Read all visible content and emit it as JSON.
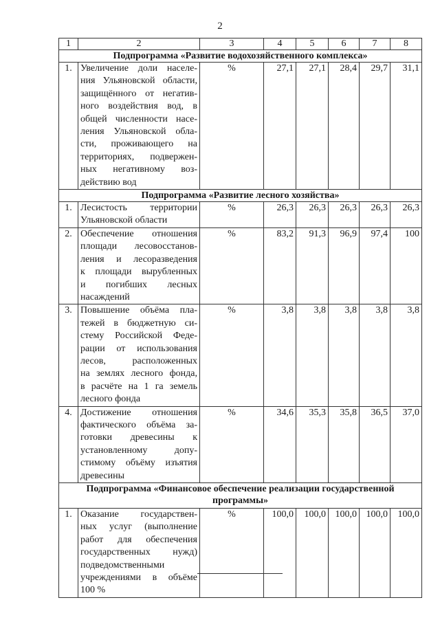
{
  "page_number": "2",
  "columns": [
    "1",
    "2",
    "3",
    "4",
    "5",
    "6",
    "7",
    "8"
  ],
  "sections": [
    {
      "title": "Подпрограмма «Развитие водохозяйственного комплекса»",
      "rows": [
        {
          "n": "1.",
          "lines": [
            "Увеличение доли населе-",
            "ния Ульяновской области,",
            "защищённого от негатив-",
            "ного воздействия вод, в",
            "общей численности насе-",
            "ления Ульяновской обла-",
            "сти, проживающего на",
            "территориях, подвержен-",
            "ных негативному воз-",
            "действию вод"
          ],
          "unit": "%",
          "values": [
            "27,1",
            "27,1",
            "28,4",
            "29,7",
            "31,1"
          ]
        }
      ]
    },
    {
      "title": "Подпрограмма «Развитие лесного хозяйства»",
      "rows": [
        {
          "n": "1.",
          "lines": [
            "Лесистость территории",
            "Ульяновской области"
          ],
          "unit": "%",
          "values": [
            "26,3",
            "26,3",
            "26,3",
            "26,3",
            "26,3"
          ]
        },
        {
          "n": "2.",
          "lines": [
            "Обеспечение отношения",
            "площади лесовосстанов-",
            "ления и лесоразведения",
            "к площади вырубленных",
            "и погибших лесных",
            "насаждений"
          ],
          "unit": "%",
          "values": [
            "83,2",
            "91,3",
            "96,9",
            "97,4",
            "100"
          ]
        },
        {
          "n": "3.",
          "lines": [
            "Повышение объёма пла-",
            "тежей в бюджетную си-",
            "стему Российской Феде-",
            "рации от использования",
            "лесов, расположенных",
            "на землях лесного фонда,",
            "в расчёте на 1 га земель",
            "лесного фонда"
          ],
          "unit": "%",
          "values": [
            "3,8",
            "3,8",
            "3,8",
            "3,8",
            "3,8"
          ]
        },
        {
          "n": "4.",
          "lines": [
            "Достижение отношения",
            "фактического объёма за-",
            "готовки древесины к",
            "установленному допу-",
            "стимому объёму изъятия",
            "древесины"
          ],
          "unit": "%",
          "values": [
            "34,6",
            "35,3",
            "35,8",
            "36,5",
            "37,0"
          ]
        }
      ]
    },
    {
      "title": "Подпрограмма «Финансовое обеспечение реализации государственной программы»",
      "rows": [
        {
          "n": "1.",
          "lines": [
            "Оказание государствен-",
            "ных услуг (выполнение",
            "работ для обеспечения",
            "государственных нужд)",
            "подведомственными",
            "учреждениями в объёме",
            "100 %"
          ],
          "unit": "%",
          "values": [
            "100,0",
            "100,0",
            "100,0",
            "100,0",
            "100,0"
          ]
        }
      ]
    }
  ]
}
